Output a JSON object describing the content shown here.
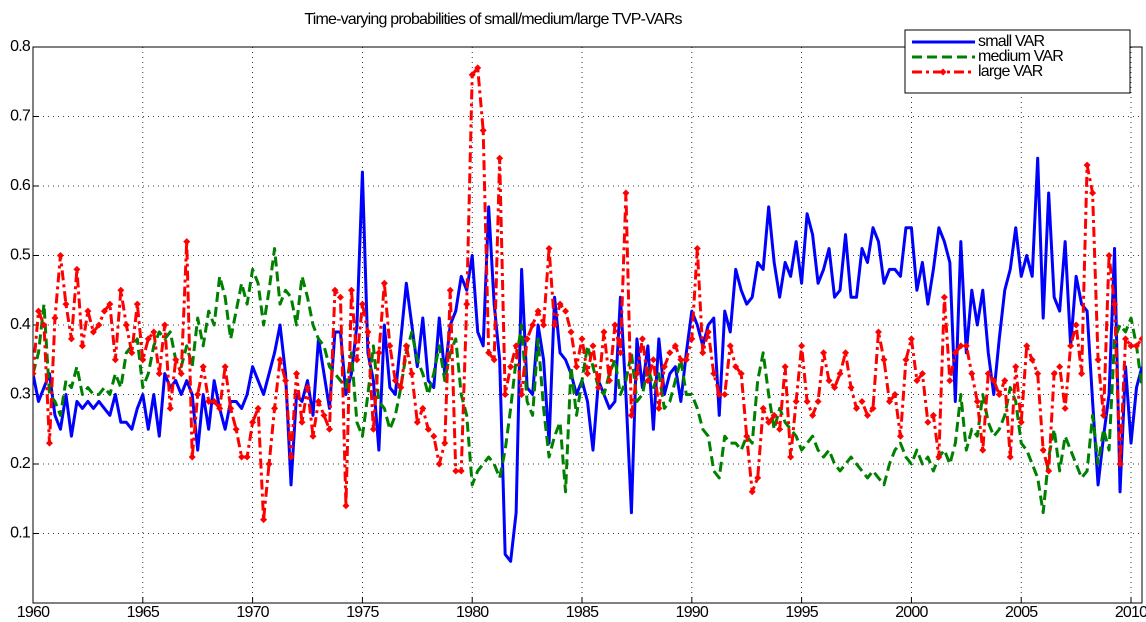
{
  "chart_data": {
    "type": "line",
    "title": "Time-varying probabilities of small/medium/large TVP-VARs",
    "x": [
      1960,
      1960.25,
      1960.5,
      1960.75,
      1961,
      1961.25,
      1961.5,
      1961.75,
      1962,
      1962.25,
      1962.5,
      1962.75,
      1963,
      1963.25,
      1963.5,
      1963.75,
      1964,
      1964.25,
      1964.5,
      1964.75,
      1965,
      1965.25,
      1965.5,
      1965.75,
      1966,
      1966.25,
      1966.5,
      1966.75,
      1967,
      1967.25,
      1967.5,
      1967.75,
      1968,
      1968.25,
      1968.5,
      1968.75,
      1969,
      1969.25,
      1969.5,
      1969.75,
      1970,
      1970.25,
      1970.5,
      1970.75,
      1971,
      1971.25,
      1971.5,
      1971.75,
      1972,
      1972.25,
      1972.5,
      1972.75,
      1973,
      1973.25,
      1973.5,
      1973.75,
      1974,
      1974.25,
      1974.5,
      1974.75,
      1975,
      1975.25,
      1975.5,
      1975.75,
      1976,
      1976.25,
      1976.5,
      1976.75,
      1977,
      1977.25,
      1977.5,
      1977.75,
      1978,
      1978.25,
      1978.5,
      1978.75,
      1979,
      1979.25,
      1979.5,
      1979.75,
      1980,
      1980.25,
      1980.5,
      1980.75,
      1981,
      1981.25,
      1981.5,
      1981.75,
      1982,
      1982.25,
      1982.5,
      1982.75,
      1983,
      1983.25,
      1983.5,
      1983.75,
      1984,
      1984.25,
      1984.5,
      1984.75,
      1985,
      1985.25,
      1985.5,
      1985.75,
      1986,
      1986.25,
      1986.5,
      1986.75,
      1987,
      1987.25,
      1987.5,
      1987.75,
      1988,
      1988.25,
      1988.5,
      1988.75,
      1989,
      1989.25,
      1989.5,
      1989.75,
      1990,
      1990.25,
      1990.5,
      1990.75,
      1991,
      1991.25,
      1991.5,
      1991.75,
      1992,
      1992.25,
      1992.5,
      1992.75,
      1993,
      1993.25,
      1993.5,
      1993.75,
      1994,
      1994.25,
      1994.5,
      1994.75,
      1995,
      1995.25,
      1995.5,
      1995.75,
      1996,
      1996.25,
      1996.5,
      1996.75,
      1997,
      1997.25,
      1997.5,
      1997.75,
      1998,
      1998.25,
      1998.5,
      1998.75,
      1999,
      1999.25,
      1999.5,
      1999.75,
      2000,
      2000.25,
      2000.5,
      2000.75,
      2001,
      2001.25,
      2001.5,
      2001.75,
      2002,
      2002.25,
      2002.5,
      2002.75,
      2003,
      2003.25,
      2003.5,
      2003.75,
      2004,
      2004.25,
      2004.5,
      2004.75,
      2005,
      2005.25,
      2005.5,
      2005.75,
      2006,
      2006.25,
      2006.5,
      2006.75,
      2007,
      2007.25,
      2007.5,
      2007.75,
      2008,
      2008.25,
      2008.5,
      2008.75,
      2009,
      2009.25,
      2009.5,
      2009.75,
      2010,
      2010.25,
      2010.5
    ],
    "series": [
      {
        "name": "small VAR",
        "color": "#0000ff",
        "style": "solid",
        "marker": "none",
        "values": [
          0.33,
          0.29,
          0.31,
          0.33,
          0.27,
          0.25,
          0.3,
          0.24,
          0.29,
          0.28,
          0.29,
          0.28,
          0.29,
          0.28,
          0.27,
          0.3,
          0.26,
          0.26,
          0.25,
          0.28,
          0.3,
          0.25,
          0.3,
          0.24,
          0.33,
          0.31,
          0.32,
          0.3,
          0.32,
          0.3,
          0.22,
          0.3,
          0.25,
          0.32,
          0.28,
          0.25,
          0.29,
          0.29,
          0.28,
          0.3,
          0.34,
          0.32,
          0.3,
          0.33,
          0.36,
          0.4,
          0.33,
          0.17,
          0.3,
          0.29,
          0.32,
          0.27,
          0.38,
          0.33,
          0.28,
          0.39,
          0.39,
          0.3,
          0.33,
          0.4,
          0.62,
          0.36,
          0.32,
          0.22,
          0.4,
          0.31,
          0.3,
          0.38,
          0.46,
          0.4,
          0.34,
          0.41,
          0.32,
          0.31,
          0.41,
          0.33,
          0.4,
          0.42,
          0.47,
          0.45,
          0.5,
          0.39,
          0.37,
          0.57,
          0.43,
          0.35,
          0.07,
          0.06,
          0.13,
          0.48,
          0.31,
          0.3,
          0.4,
          0.35,
          0.23,
          0.44,
          0.36,
          0.35,
          0.33,
          0.3,
          0.32,
          0.29,
          0.22,
          0.32,
          0.3,
          0.28,
          0.29,
          0.44,
          0.3,
          0.13,
          0.38,
          0.31,
          0.37,
          0.25,
          0.38,
          0.3,
          0.33,
          0.34,
          0.29,
          0.36,
          0.42,
          0.4,
          0.37,
          0.4,
          0.41,
          0.27,
          0.42,
          0.39,
          0.48,
          0.45,
          0.43,
          0.44,
          0.49,
          0.48,
          0.57,
          0.49,
          0.44,
          0.49,
          0.47,
          0.52,
          0.46,
          0.56,
          0.53,
          0.46,
          0.48,
          0.51,
          0.44,
          0.45,
          0.53,
          0.44,
          0.44,
          0.51,
          0.49,
          0.54,
          0.52,
          0.46,
          0.48,
          0.48,
          0.47,
          0.54,
          0.54,
          0.45,
          0.49,
          0.43,
          0.48,
          0.54,
          0.52,
          0.49,
          0.29,
          0.52,
          0.36,
          0.45,
          0.4,
          0.45,
          0.36,
          0.3,
          0.38,
          0.45,
          0.48,
          0.54,
          0.47,
          0.5,
          0.47,
          0.64,
          0.41,
          0.59,
          0.44,
          0.42,
          0.52,
          0.37,
          0.47,
          0.43,
          0.42,
          0.29,
          0.17,
          0.24,
          0.3,
          0.51,
          0.16,
          0.34,
          0.23,
          0.31,
          0.34
        ]
      },
      {
        "name": "medium VAR",
        "color": "#008000",
        "style": "dashed",
        "marker": "none",
        "values": [
          0.33,
          0.36,
          0.43,
          0.3,
          0.29,
          0.27,
          0.32,
          0.31,
          0.34,
          0.3,
          0.31,
          0.3,
          0.3,
          0.31,
          0.3,
          0.33,
          0.31,
          0.36,
          0.37,
          0.38,
          0.31,
          0.33,
          0.37,
          0.39,
          0.38,
          0.39,
          0.35,
          0.34,
          0.37,
          0.34,
          0.41,
          0.37,
          0.42,
          0.4,
          0.47,
          0.44,
          0.38,
          0.42,
          0.46,
          0.43,
          0.48,
          0.46,
          0.4,
          0.45,
          0.51,
          0.43,
          0.45,
          0.44,
          0.4,
          0.47,
          0.44,
          0.4,
          0.38,
          0.37,
          0.34,
          0.33,
          0.32,
          0.31,
          0.36,
          0.26,
          0.24,
          0.3,
          0.37,
          0.29,
          0.28,
          0.25,
          0.27,
          0.31,
          0.36,
          0.39,
          0.35,
          0.33,
          0.3,
          0.33,
          0.37,
          0.32,
          0.36,
          0.38,
          0.3,
          0.27,
          0.17,
          0.19,
          0.2,
          0.21,
          0.2,
          0.18,
          0.22,
          0.28,
          0.35,
          0.4,
          0.29,
          0.27,
          0.38,
          0.28,
          0.21,
          0.24,
          0.26,
          0.16,
          0.34,
          0.27,
          0.32,
          0.37,
          0.34,
          0.31,
          0.3,
          0.33,
          0.35,
          0.3,
          0.32,
          0.36,
          0.29,
          0.3,
          0.34,
          0.31,
          0.33,
          0.28,
          0.29,
          0.32,
          0.35,
          0.3,
          0.3,
          0.28,
          0.25,
          0.24,
          0.19,
          0.18,
          0.24,
          0.23,
          0.23,
          0.22,
          0.24,
          0.23,
          0.32,
          0.36,
          0.3,
          0.25,
          0.28,
          0.26,
          0.25,
          0.24,
          0.22,
          0.23,
          0.24,
          0.22,
          0.21,
          0.22,
          0.2,
          0.19,
          0.2,
          0.21,
          0.2,
          0.19,
          0.18,
          0.19,
          0.18,
          0.17,
          0.2,
          0.22,
          0.23,
          0.21,
          0.2,
          0.22,
          0.2,
          0.21,
          0.19,
          0.21,
          0.22,
          0.2,
          0.23,
          0.3,
          0.22,
          0.25,
          0.24,
          0.3,
          0.26,
          0.24,
          0.25,
          0.27,
          0.31,
          0.29,
          0.23,
          0.22,
          0.2,
          0.18,
          0.13,
          0.21,
          0.25,
          0.19,
          0.24,
          0.22,
          0.2,
          0.18,
          0.19,
          0.27,
          0.2,
          0.25,
          0.22,
          0.38,
          0.4,
          0.39,
          0.41,
          0.37,
          0.31
        ]
      },
      {
        "name": "large VAR",
        "color": "#ff0000",
        "style": "dashdot",
        "marker": "diamond",
        "values": [
          0.33,
          0.42,
          0.4,
          0.23,
          0.41,
          0.5,
          0.43,
          0.38,
          0.48,
          0.37,
          0.42,
          0.39,
          0.4,
          0.42,
          0.43,
          0.35,
          0.45,
          0.4,
          0.36,
          0.43,
          0.35,
          0.38,
          0.39,
          0.33,
          0.4,
          0.28,
          0.35,
          0.33,
          0.52,
          0.21,
          0.3,
          0.34,
          0.29,
          0.29,
          0.28,
          0.34,
          0.28,
          0.25,
          0.21,
          0.21,
          0.26,
          0.28,
          0.12,
          0.2,
          0.28,
          0.35,
          0.32,
          0.21,
          0.33,
          0.26,
          0.31,
          0.24,
          0.29,
          0.27,
          0.25,
          0.45,
          0.44,
          0.14,
          0.45,
          0.35,
          0.43,
          0.39,
          0.25,
          0.36,
          0.46,
          0.37,
          0.32,
          0.31,
          0.37,
          0.33,
          0.26,
          0.28,
          0.25,
          0.24,
          0.2,
          0.23,
          0.45,
          0.19,
          0.19,
          0.43,
          0.76,
          0.77,
          0.68,
          0.36,
          0.35,
          0.64,
          0.3,
          0.34,
          0.37,
          0.3,
          0.38,
          0.4,
          0.42,
          0.4,
          0.51,
          0.4,
          0.43,
          0.42,
          0.39,
          0.34,
          0.38,
          0.33,
          0.37,
          0.31,
          0.39,
          0.32,
          0.4,
          0.36,
          0.59,
          0.27,
          0.33,
          0.38,
          0.32,
          0.35,
          0.28,
          0.34,
          0.36,
          0.37,
          0.35,
          0.35,
          0.38,
          0.51,
          0.36,
          0.39,
          0.33,
          0.3,
          0.3,
          0.37,
          0.34,
          0.33,
          0.24,
          0.16,
          0.18,
          0.28,
          0.26,
          0.27,
          0.25,
          0.34,
          0.21,
          0.29,
          0.37,
          0.29,
          0.27,
          0.29,
          0.36,
          0.32,
          0.31,
          0.33,
          0.36,
          0.31,
          0.28,
          0.29,
          0.27,
          0.28,
          0.39,
          0.35,
          0.29,
          0.3,
          0.24,
          0.35,
          0.38,
          0.32,
          0.33,
          0.26,
          0.27,
          0.21,
          0.44,
          0.32,
          0.36,
          0.37,
          0.37,
          0.33,
          0.29,
          0.22,
          0.33,
          0.32,
          0.3,
          0.32,
          0.21,
          0.34,
          0.26,
          0.37,
          0.35,
          0.33,
          0.22,
          0.19,
          0.33,
          0.34,
          0.28,
          0.37,
          0.4,
          0.33,
          0.63,
          0.59,
          0.35,
          0.27,
          0.5,
          0.43,
          0.2,
          0.38,
          0.37,
          0.37,
          0.38
        ]
      }
    ],
    "xlim": [
      1960,
      2010.5
    ],
    "xticks": [
      1960,
      1965,
      1970,
      1975,
      1980,
      1985,
      1990,
      1995,
      2000,
      2005,
      2010
    ],
    "ylim": [
      0,
      0.8
    ],
    "yticks": [
      0.1,
      0.2,
      0.3,
      0.4,
      0.5,
      0.6,
      0.7,
      0.8
    ],
    "grid": true,
    "legend": "top-right"
  }
}
